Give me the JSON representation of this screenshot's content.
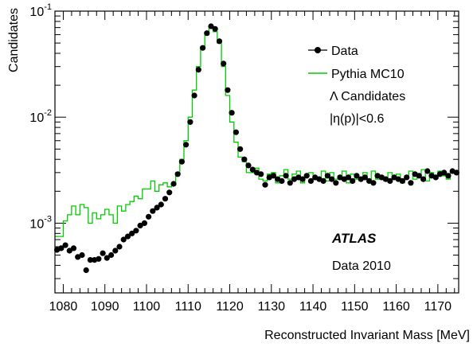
{
  "chart_data": {
    "type": "scatter",
    "xlabel": "Reconstructed Invariant Mass [MeV]",
    "ylabel": "Candidates",
    "xlim": [
      1078,
      1175
    ],
    "ylim": [
      0.00022,
      0.1
    ],
    "y_scale": "log",
    "x_ticks": [
      1080,
      1090,
      1100,
      1110,
      1120,
      1130,
      1140,
      1150,
      1160,
      1170
    ],
    "x_tick_labels": [
      "1080",
      "1090",
      "1100",
      "1110",
      "1120",
      "1130",
      "1140",
      "1150",
      "1160",
      "1170"
    ],
    "y_ticks": [
      0.001,
      0.01,
      0.1
    ],
    "y_tick_labels": [
      {
        "base": "10",
        "exp": "-3"
      },
      {
        "base": "10",
        "exp": "-2"
      },
      {
        "base": "10",
        "exp": "-1"
      }
    ],
    "colors": {
      "data": "#000000",
      "mc": "#00cc00"
    },
    "legend_position": "top-right",
    "series": [
      {
        "name": "Data",
        "style": "markers",
        "x": [
          1078.5,
          1079.5,
          1080.5,
          1081.5,
          1082.5,
          1083.5,
          1084.5,
          1085.5,
          1086.5,
          1087.5,
          1088.5,
          1089.5,
          1090.5,
          1091.5,
          1092.5,
          1093.5,
          1094.5,
          1095.5,
          1096.5,
          1097.5,
          1098.5,
          1099.5,
          1100.5,
          1101.5,
          1102.5,
          1103.5,
          1104.5,
          1105.5,
          1106.5,
          1107.5,
          1108.5,
          1109.5,
          1110.5,
          1111.5,
          1112.5,
          1113.5,
          1114.5,
          1115.5,
          1116.5,
          1117.5,
          1118.5,
          1119.5,
          1120.5,
          1121.5,
          1122.5,
          1123.5,
          1124.5,
          1125.5,
          1126.5,
          1127.5,
          1128.5,
          1129.5,
          1130.5,
          1131.5,
          1132.5,
          1133.5,
          1134.5,
          1135.5,
          1136.5,
          1137.5,
          1138.5,
          1139.5,
          1140.5,
          1141.5,
          1142.5,
          1143.5,
          1144.5,
          1145.5,
          1146.5,
          1147.5,
          1148.5,
          1149.5,
          1150.5,
          1151.5,
          1152.5,
          1153.5,
          1154.5,
          1155.5,
          1156.5,
          1157.5,
          1158.5,
          1159.5,
          1160.5,
          1161.5,
          1162.5,
          1163.5,
          1164.5,
          1165.5,
          1166.5,
          1167.5,
          1168.5,
          1169.5,
          1170.5,
          1171.5,
          1172.5,
          1173.5,
          1174.5
        ],
        "y": [
          0.00056,
          0.00058,
          0.00062,
          0.00055,
          0.00058,
          0.00048,
          0.0005,
          0.00036,
          0.00045,
          0.00045,
          0.00046,
          0.00052,
          0.00047,
          0.0005,
          0.00055,
          0.0006,
          0.0007,
          0.00075,
          0.0008,
          0.00085,
          0.00095,
          0.001,
          0.00115,
          0.0013,
          0.0014,
          0.0015,
          0.0017,
          0.00195,
          0.00235,
          0.0029,
          0.0038,
          0.0055,
          0.009,
          0.016,
          0.028,
          0.045,
          0.062,
          0.072,
          0.068,
          0.052,
          0.032,
          0.018,
          0.011,
          0.0072,
          0.005,
          0.004,
          0.0035,
          0.0032,
          0.003,
          0.0029,
          0.0023,
          0.0027,
          0.0028,
          0.0026,
          0.0025,
          0.0028,
          0.0024,
          0.0026,
          0.0027,
          0.0026,
          0.0028,
          0.0025,
          0.0027,
          0.0026,
          0.0025,
          0.0028,
          0.0026,
          0.0024,
          0.0027,
          0.0026,
          0.0027,
          0.0025,
          0.0028,
          0.0026,
          0.0027,
          0.0025,
          0.0024,
          0.0028,
          0.0027,
          0.0026,
          0.0025,
          0.0027,
          0.0026,
          0.0025,
          0.0027,
          0.0024,
          0.0029,
          0.0028,
          0.0026,
          0.0031,
          0.0028,
          0.0027,
          0.0029,
          0.003,
          0.0028,
          0.0031,
          0.003
        ]
      },
      {
        "name": "Pythia MC10",
        "style": "step",
        "x": [
          1078.5,
          1079.5,
          1080.5,
          1081.5,
          1082.5,
          1083.5,
          1084.5,
          1085.5,
          1086.5,
          1087.5,
          1088.5,
          1089.5,
          1090.5,
          1091.5,
          1092.5,
          1093.5,
          1094.5,
          1095.5,
          1096.5,
          1097.5,
          1098.5,
          1099.5,
          1100.5,
          1101.5,
          1102.5,
          1103.5,
          1104.5,
          1105.5,
          1106.5,
          1107.5,
          1108.5,
          1109.5,
          1110.5,
          1111.5,
          1112.5,
          1113.5,
          1114.5,
          1115.5,
          1116.5,
          1117.5,
          1118.5,
          1119.5,
          1120.5,
          1121.5,
          1122.5,
          1123.5,
          1124.5,
          1125.5,
          1126.5,
          1127.5,
          1128.5,
          1129.5,
          1130.5,
          1131.5,
          1132.5,
          1133.5,
          1134.5,
          1135.5,
          1136.5,
          1137.5,
          1138.5,
          1139.5,
          1140.5,
          1141.5,
          1142.5,
          1143.5,
          1144.5,
          1145.5,
          1146.5,
          1147.5,
          1148.5,
          1149.5,
          1150.5,
          1151.5,
          1152.5,
          1153.5,
          1154.5,
          1155.5,
          1156.5,
          1157.5,
          1158.5,
          1159.5,
          1160.5,
          1161.5,
          1162.5,
          1163.5,
          1164.5,
          1165.5,
          1166.5,
          1167.5,
          1168.5,
          1169.5,
          1170.5,
          1171.5,
          1172.5,
          1173.5,
          1174.5
        ],
        "y": [
          0.00075,
          0.00075,
          0.00105,
          0.0012,
          0.00145,
          0.0012,
          0.0015,
          0.0014,
          0.001,
          0.00125,
          0.0011,
          0.0012,
          0.00135,
          0.0012,
          0.001,
          0.00145,
          0.0013,
          0.0015,
          0.0016,
          0.0018,
          0.0017,
          0.0021,
          0.0021,
          0.0025,
          0.002,
          0.0023,
          0.0024,
          0.0022,
          0.0023,
          0.003,
          0.004,
          0.006,
          0.01,
          0.018,
          0.03,
          0.045,
          0.06,
          0.07,
          0.064,
          0.05,
          0.03,
          0.016,
          0.009,
          0.0058,
          0.0042,
          0.0038,
          0.003,
          0.003,
          0.0033,
          0.0026,
          0.0025,
          0.0029,
          0.003,
          0.0024,
          0.0028,
          0.0032,
          0.0026,
          0.0029,
          0.0031,
          0.0024,
          0.0028,
          0.003,
          0.0026,
          0.0027,
          0.0031,
          0.0025,
          0.003,
          0.0026,
          0.0028,
          0.0031,
          0.0024,
          0.0029,
          0.0026,
          0.0027,
          0.003,
          0.0025,
          0.0031,
          0.0026,
          0.0028,
          0.0025,
          0.003,
          0.0027,
          0.0029,
          0.0024,
          0.0028,
          0.0031,
          0.0026,
          0.0029,
          0.0032,
          0.0025,
          0.003,
          0.0027,
          0.0031,
          0.0028,
          0.0026,
          0.003,
          0.0029
        ]
      }
    ],
    "legend": [
      {
        "label": "Data",
        "style": "marker"
      },
      {
        "label": "Pythia MC10",
        "style": "line"
      },
      {
        "label": "Λ Candidates",
        "style": "none"
      },
      {
        "label": "|η(p)|<0.6",
        "style": "none"
      }
    ],
    "annotations": {
      "experiment": "ATLAS",
      "dataset": "Data 2010"
    }
  }
}
